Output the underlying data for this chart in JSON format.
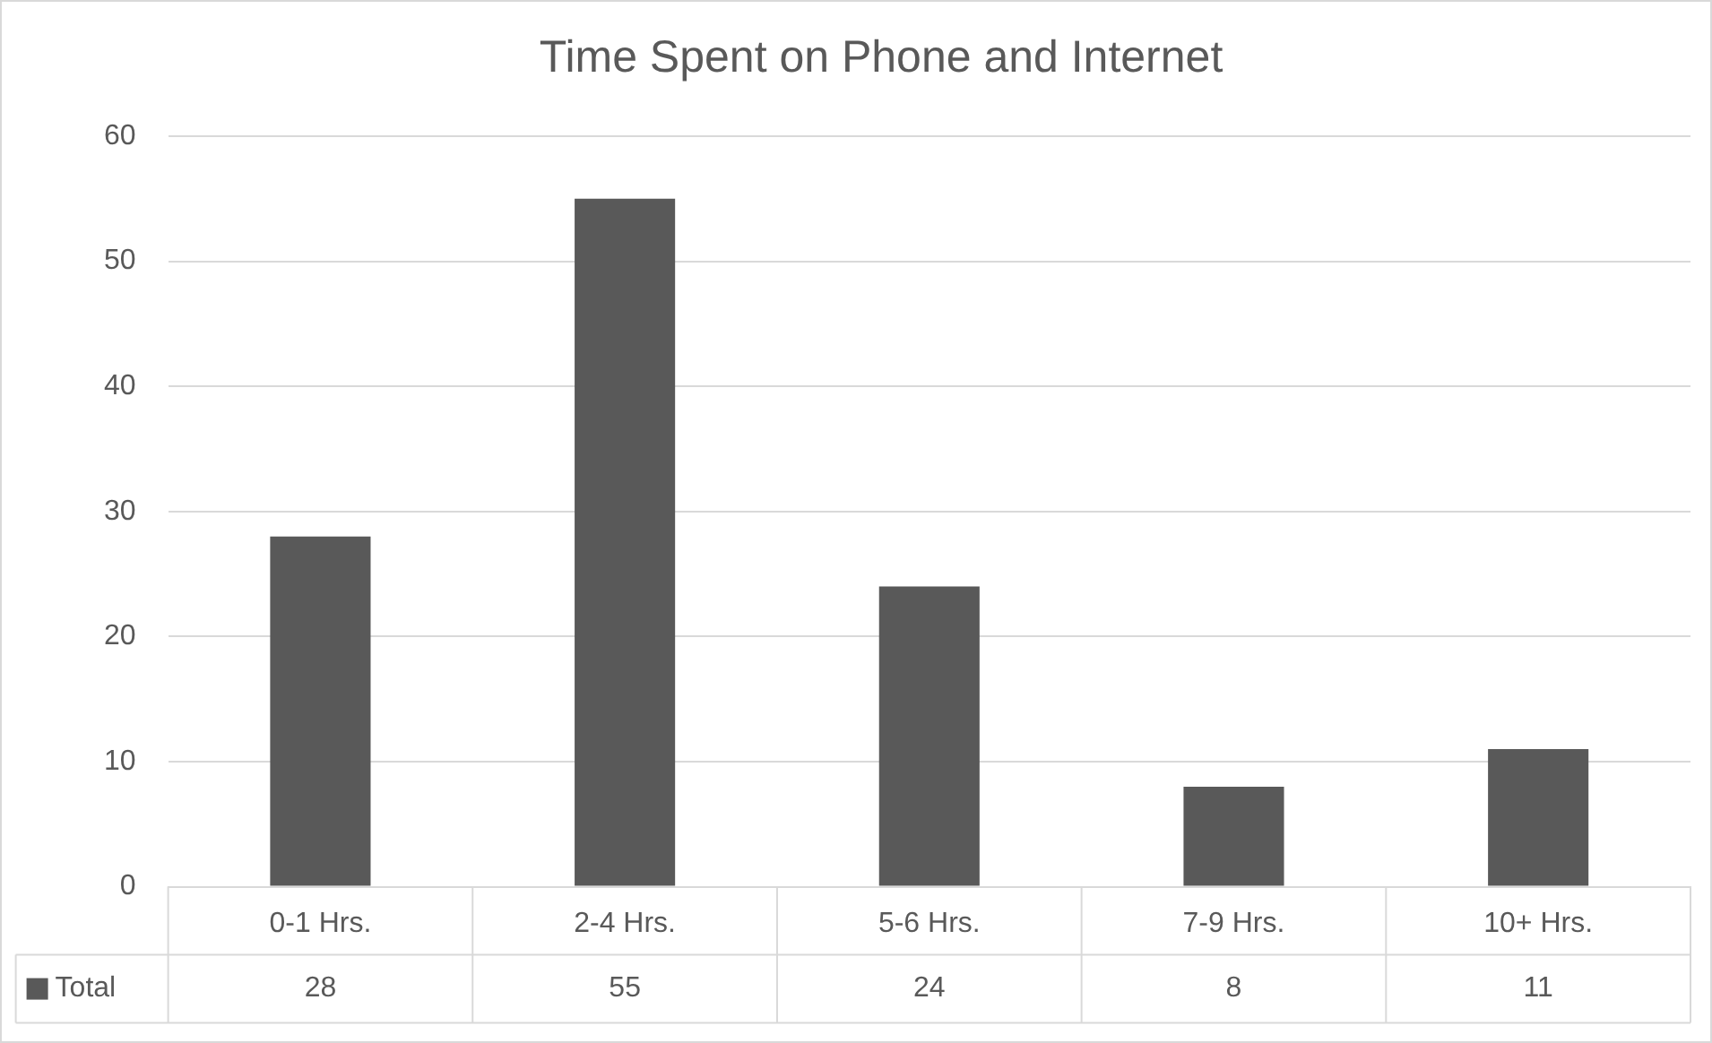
{
  "chart_data": {
    "type": "bar",
    "title": "Time Spent on Phone and Internet",
    "categories": [
      "0-1 Hrs.",
      "2-4 Hrs.",
      "5-6 Hrs.",
      "7-9 Hrs.",
      "10+ Hrs."
    ],
    "series": [
      {
        "name": "Total",
        "color": "#595959",
        "values": [
          28,
          55,
          24,
          8,
          11
        ]
      }
    ],
    "ylim": [
      0,
      60
    ],
    "yticks": [
      0,
      10,
      20,
      30,
      40,
      50,
      60
    ],
    "grid": "y",
    "legend": "bottom",
    "data_labels": true
  }
}
